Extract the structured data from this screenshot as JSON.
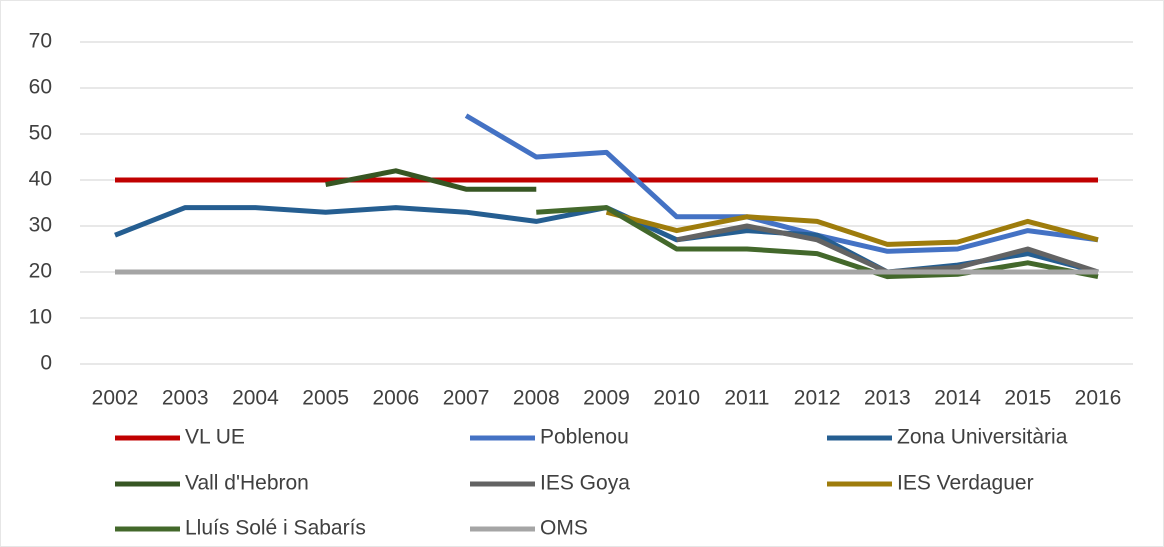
{
  "chart_data": {
    "type": "line",
    "categories": [
      "2002",
      "2003",
      "2004",
      "2005",
      "2006",
      "2007",
      "2008",
      "2009",
      "2010",
      "2011",
      "2012",
      "2013",
      "2014",
      "2015",
      "2016"
    ],
    "ylim": [
      0,
      70
    ],
    "yticks": [
      0,
      10,
      20,
      30,
      40,
      50,
      60,
      70
    ],
    "grid": true,
    "series": [
      {
        "name": "VL UE",
        "color": "#c00000",
        "values": [
          40,
          40,
          40,
          40,
          40,
          40,
          40,
          40,
          40,
          40,
          40,
          40,
          40,
          40,
          40
        ]
      },
      {
        "name": "Poblenou",
        "color": "#4472c4",
        "values": [
          null,
          null,
          null,
          null,
          null,
          54,
          45,
          46,
          32,
          32,
          28,
          24.5,
          25,
          29,
          27
        ]
      },
      {
        "name": "Zona Universitària",
        "color": "#255e91",
        "values": [
          28,
          34,
          34,
          33,
          34,
          33,
          31,
          34,
          27,
          29,
          28,
          20,
          21.5,
          24,
          20
        ]
      },
      {
        "name": "Vall d'Hebron",
        "color": "#375623",
        "values": [
          null,
          null,
          null,
          39,
          42,
          38,
          38,
          null,
          null,
          null,
          null,
          null,
          null,
          null,
          null
        ]
      },
      {
        "name": "IES Goya",
        "color": "#636363",
        "values": [
          null,
          null,
          null,
          null,
          null,
          null,
          null,
          null,
          27,
          30,
          27,
          20,
          21,
          25,
          20
        ]
      },
      {
        "name": "IES Verdaguer",
        "color": "#9e7c0c",
        "values": [
          null,
          null,
          null,
          null,
          null,
          null,
          null,
          33,
          29,
          32,
          31,
          26,
          26.5,
          31,
          27
        ]
      },
      {
        "name": "Lluís Solé i Sabarís",
        "color": "#43682b",
        "values": [
          null,
          null,
          null,
          null,
          null,
          null,
          33,
          34,
          25,
          25,
          24,
          19,
          19.5,
          22,
          19
        ]
      },
      {
        "name": "OMS",
        "color": "#a5a5a5",
        "values": [
          20,
          20,
          20,
          20,
          20,
          20,
          20,
          20,
          20,
          20,
          20,
          20,
          20,
          20,
          20
        ]
      }
    ]
  }
}
